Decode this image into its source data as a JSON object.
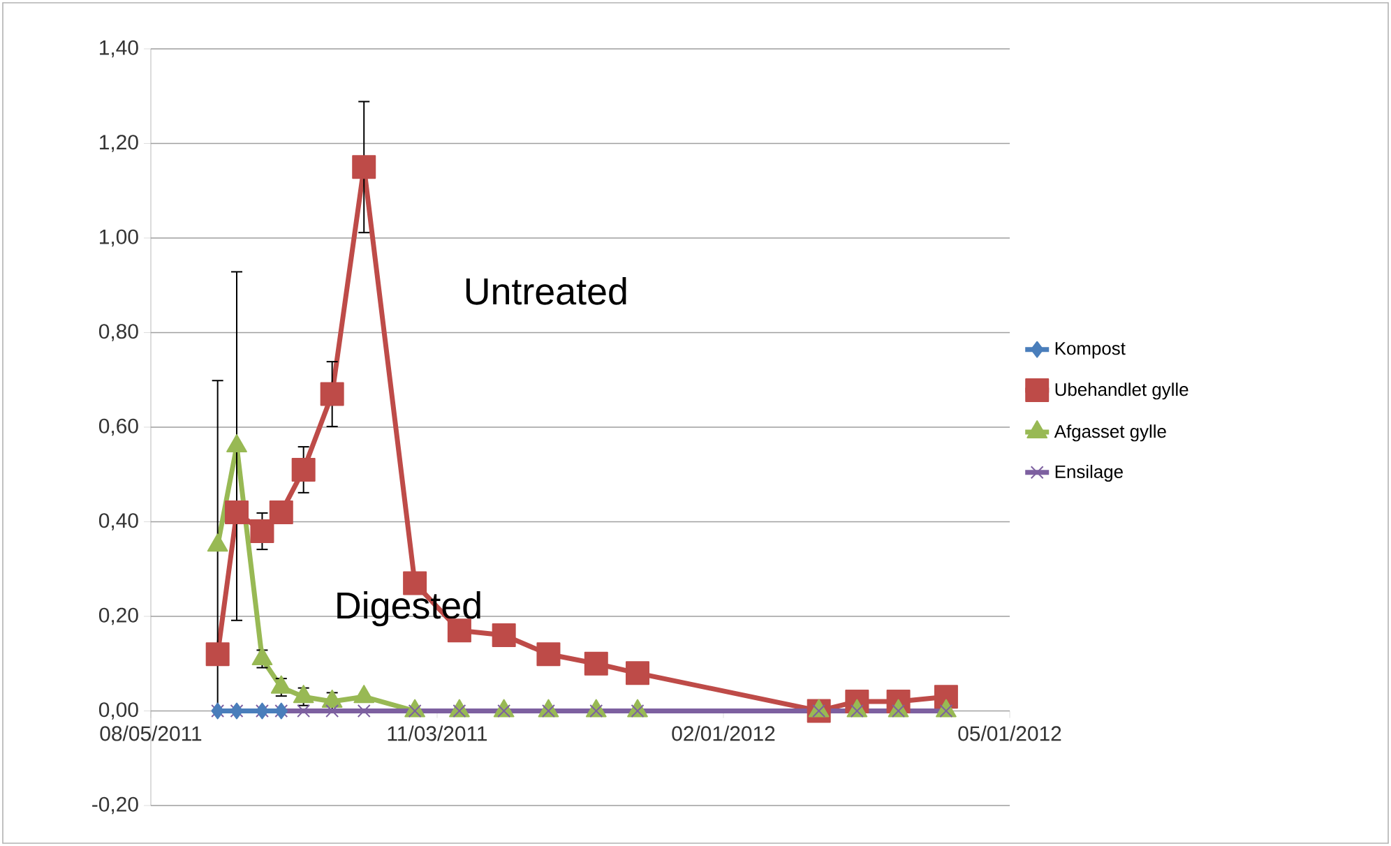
{
  "chart_data": {
    "type": "line",
    "x": [
      "2011-08-26",
      "2011-09-01",
      "2011-09-09",
      "2011-09-15",
      "2011-09-22",
      "2011-10-01",
      "2011-10-11",
      "2011-10-27",
      "2011-11-10",
      "2011-11-24",
      "2011-12-08",
      "2011-12-23",
      "2012-01-05",
      "2012-03-02",
      "2012-03-14",
      "2012-03-27",
      "2012-04-11"
    ],
    "series": [
      {
        "name": "Kompost",
        "color": "#4a7ebb",
        "marker": "diamond",
        "values": [
          0,
          0,
          0,
          0,
          null,
          null,
          null,
          null,
          null,
          null,
          null,
          null,
          null,
          null,
          null,
          null,
          null
        ]
      },
      {
        "name": "Ubehandlet gylle",
        "color": "#be4b48",
        "marker": "square",
        "values": [
          0.12,
          0.42,
          0.38,
          0.42,
          0.51,
          0.67,
          1.15,
          0.27,
          0.17,
          0.16,
          0.12,
          0.1,
          0.08,
          0.0,
          0.02,
          0.02,
          0.03
        ],
        "errors": [
          null,
          null,
          0.04,
          null,
          0.05,
          0.07,
          0.14,
          null,
          null,
          null,
          null,
          null,
          null,
          null,
          null,
          null,
          null
        ]
      },
      {
        "name": "Afgasset gylle",
        "color": "#98b954",
        "marker": "triangle",
        "values": [
          0.35,
          0.56,
          0.11,
          0.05,
          0.03,
          0.02,
          0.03,
          0,
          0,
          0,
          0,
          0,
          0,
          0,
          0,
          0,
          0
        ],
        "errors": [
          0.35,
          0.37,
          0.02,
          0.02,
          0.02,
          0.02,
          null,
          null,
          null,
          null,
          null,
          null,
          null,
          null,
          null,
          null,
          null
        ]
      },
      {
        "name": "Ensilage",
        "color": "#7d60a0",
        "marker": "cross",
        "values": [
          0,
          0,
          0,
          0,
          0,
          0,
          0,
          0,
          0,
          0,
          0,
          0,
          0,
          0,
          0,
          0,
          0
        ]
      }
    ],
    "xlim": [
      "2011-08-05",
      "2012-05-01"
    ],
    "xticks": [
      {
        "value": "2011-08-05",
        "label": "08/05/2011"
      },
      {
        "value": "2011-11-03",
        "label": "11/03/2011"
      },
      {
        "value": "2012-02-01",
        "label": "02/01/2012"
      },
      {
        "value": "2012-05-01",
        "label": "05/01/2012"
      }
    ],
    "ylim": [
      -0.2,
      1.4
    ],
    "yticks": [
      {
        "value": -0.2,
        "label": "-0,20"
      },
      {
        "value": 0,
        "label": "0,00"
      },
      {
        "value": 0.2,
        "label": "0,20"
      },
      {
        "value": 0.4,
        "label": "0,40"
      },
      {
        "value": 0.6,
        "label": "0,60"
      },
      {
        "value": 0.8,
        "label": "0,80"
      },
      {
        "value": 1.0,
        "label": "1,00"
      },
      {
        "value": 1.2,
        "label": "1,20"
      },
      {
        "value": 1.4,
        "label": "1,40"
      }
    ],
    "grid": "y",
    "legend": "right",
    "annotations": [
      "Untreated",
      "Digested"
    ]
  }
}
